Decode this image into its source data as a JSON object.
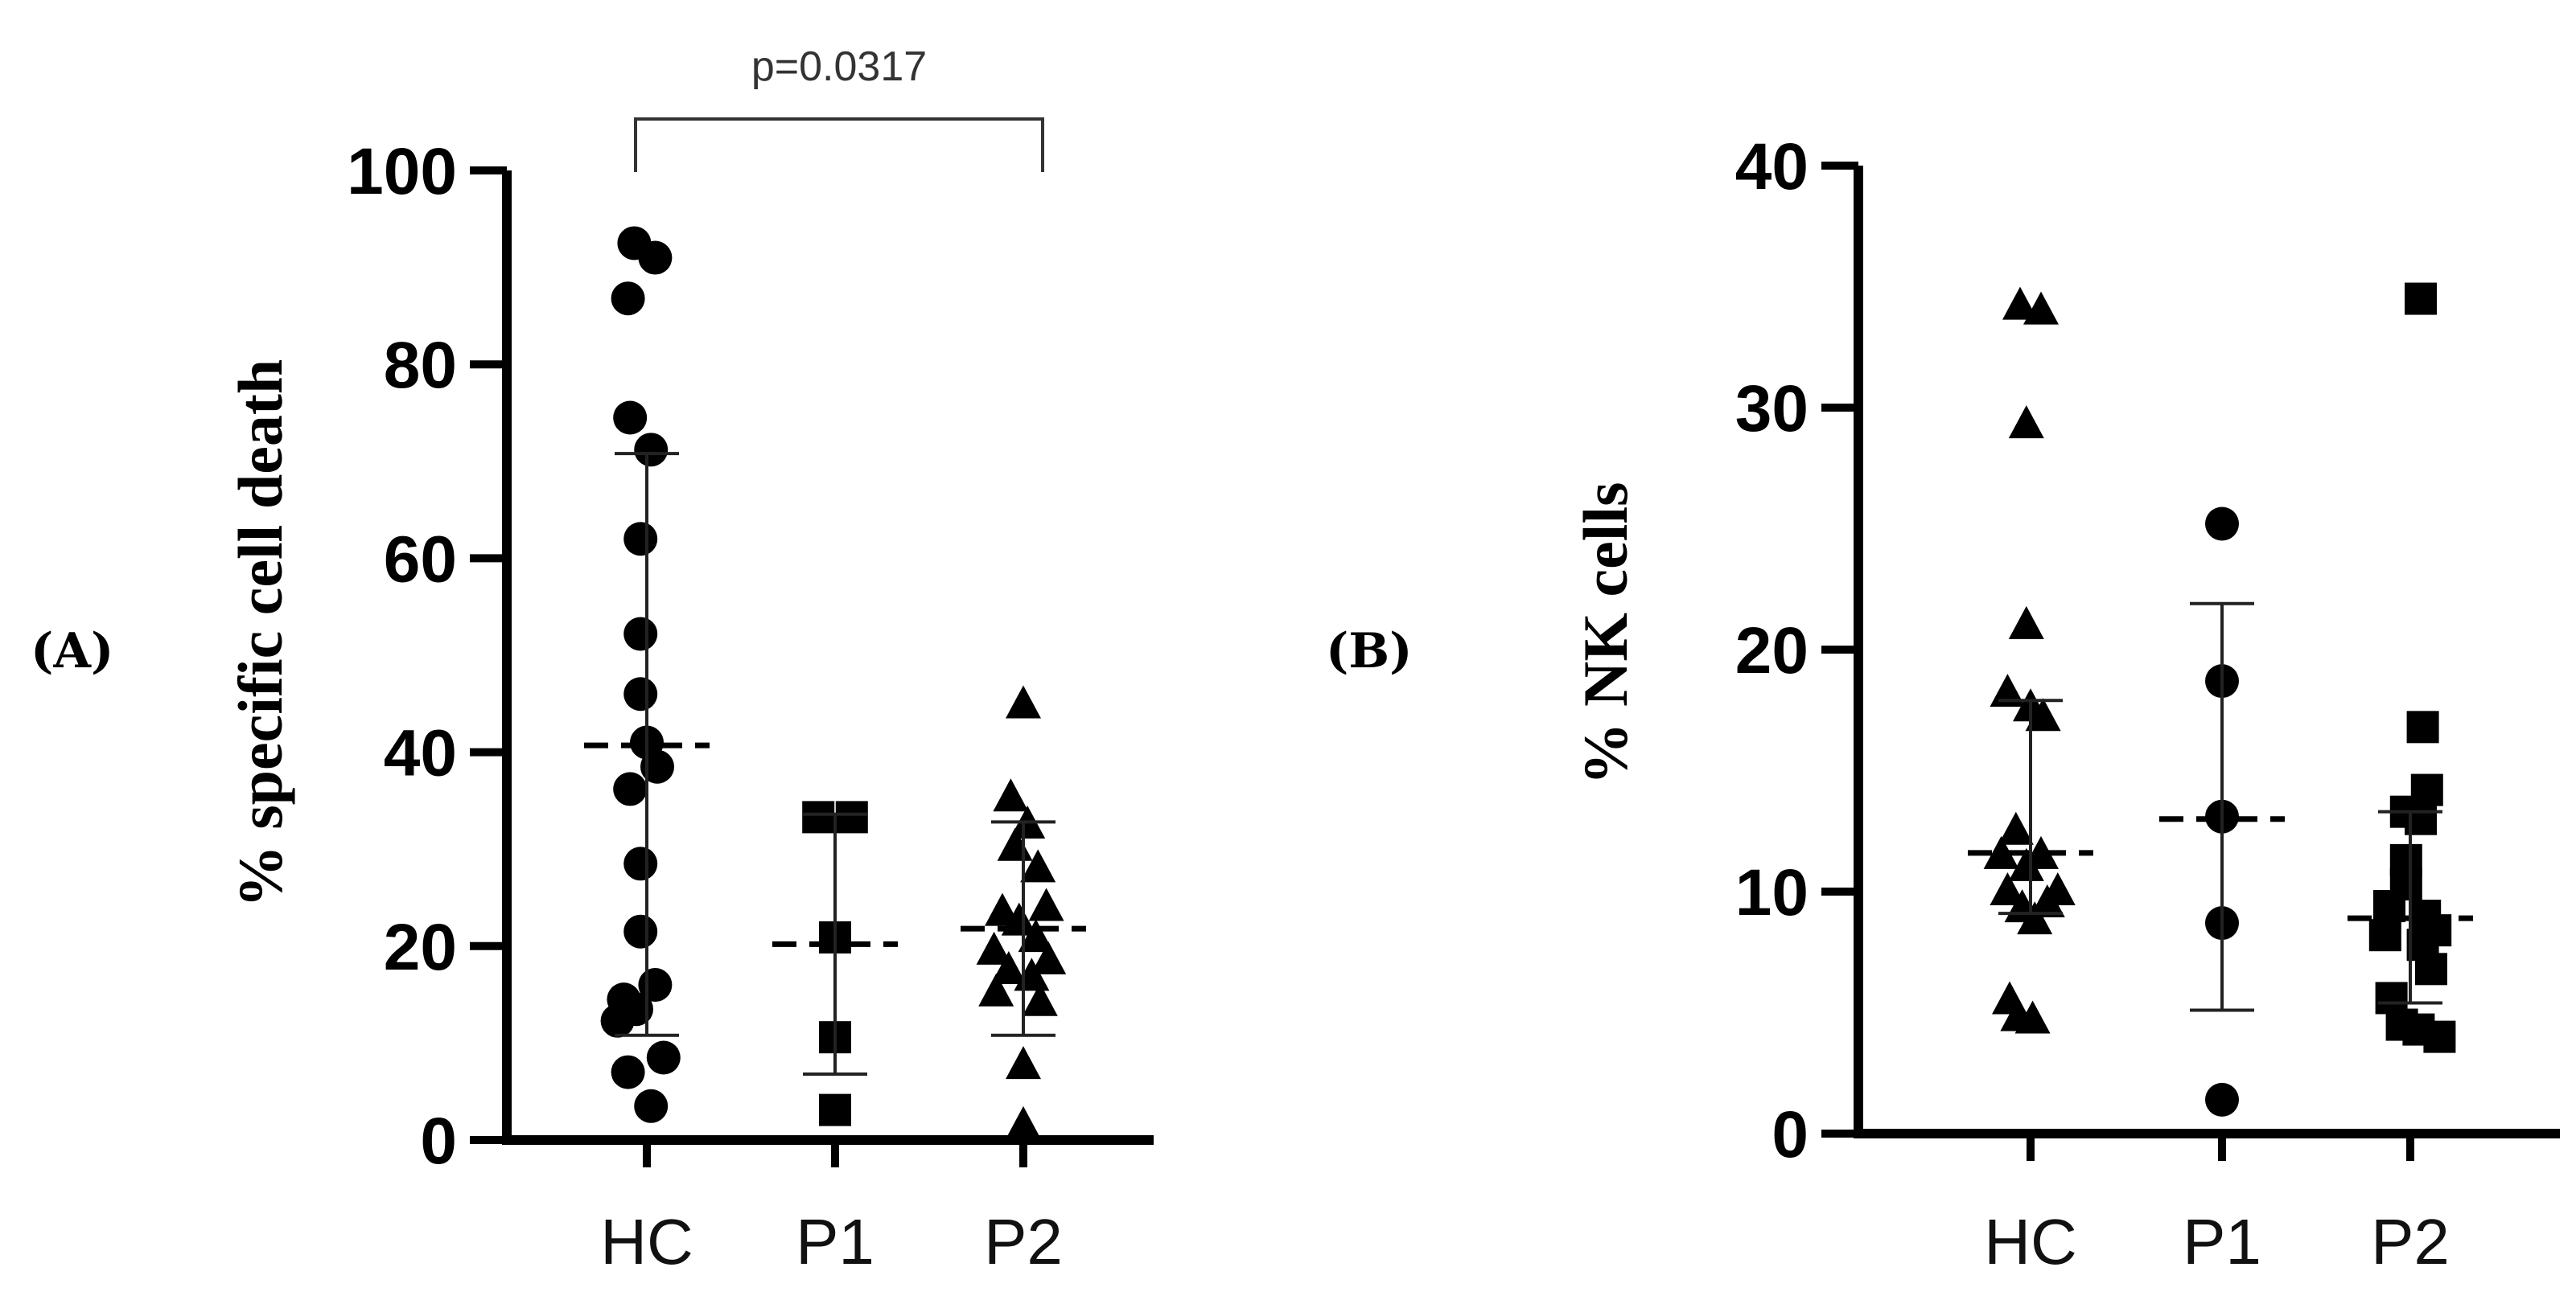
{
  "chart_data": [
    {
      "type": "scatter",
      "panel_label": "(A)",
      "title": "",
      "xlabel": "",
      "ylabel": "% specific cell death",
      "ylim": [
        0,
        100
      ],
      "yticks": [
        0,
        20,
        40,
        60,
        80,
        100
      ],
      "ytick_labels": [
        "0",
        "20",
        "40",
        "60",
        "80",
        "100"
      ],
      "grid": false,
      "categories": [
        "HC",
        "P1",
        "P2"
      ],
      "series": [
        {
          "name": "HC",
          "marker": "circle",
          "points": [
            {
              "x": -0.06,
              "y": 92.5
            },
            {
              "x": 0.04,
              "y": 91.0
            },
            {
              "x": -0.09,
              "y": 86.8
            },
            {
              "x": -0.08,
              "y": 74.5
            },
            {
              "x": 0.02,
              "y": 71.2
            },
            {
              "x": -0.03,
              "y": 62.0
            },
            {
              "x": -0.03,
              "y": 52.2
            },
            {
              "x": -0.03,
              "y": 46.0
            },
            {
              "x": 0.0,
              "y": 41.0
            },
            {
              "x": 0.05,
              "y": 38.5
            },
            {
              "x": -0.08,
              "y": 36.2
            },
            {
              "x": -0.03,
              "y": 28.5
            },
            {
              "x": -0.03,
              "y": 21.5
            },
            {
              "x": 0.04,
              "y": 16.0
            },
            {
              "x": -0.11,
              "y": 14.5
            },
            {
              "x": -0.05,
              "y": 13.5
            },
            {
              "x": -0.14,
              "y": 12.3
            },
            {
              "x": 0.08,
              "y": 8.5
            },
            {
              "x": -0.09,
              "y": 7.0
            },
            {
              "x": 0.02,
              "y": 3.5
            }
          ],
          "mean": 40.7,
          "sd_low": 10.8,
          "sd_high": 70.8
        },
        {
          "name": "P1",
          "marker": "square",
          "points": [
            {
              "x": -0.08,
              "y": 33.3
            },
            {
              "x": 0.08,
              "y": 33.3
            },
            {
              "x": 0.0,
              "y": 20.9
            },
            {
              "x": 0.0,
              "y": 10.6
            },
            {
              "x": 0.0,
              "y": 3.1
            }
          ],
          "mean": 20.2,
          "sd_low": 6.8,
          "sd_high": 33.6
        },
        {
          "name": "P2",
          "marker": "triangle",
          "points": [
            {
              "x": 0.0,
              "y": 44.9
            },
            {
              "x": -0.06,
              "y": 35.3
            },
            {
              "x": 0.02,
              "y": 32.5
            },
            {
              "x": -0.04,
              "y": 30.2
            },
            {
              "x": 0.07,
              "y": 28.0
            },
            {
              "x": 0.11,
              "y": 24.0
            },
            {
              "x": -0.1,
              "y": 23.5
            },
            {
              "x": -0.02,
              "y": 22.5
            },
            {
              "x": 0.06,
              "y": 20.8
            },
            {
              "x": -0.14,
              "y": 19.5
            },
            {
              "x": 0.12,
              "y": 18.5
            },
            {
              "x": -0.07,
              "y": 17.5
            },
            {
              "x": 0.04,
              "y": 16.8
            },
            {
              "x": -0.13,
              "y": 15.2
            },
            {
              "x": 0.08,
              "y": 14.2
            },
            {
              "x": 0.0,
              "y": 7.7
            },
            {
              "x": 0.0,
              "y": 1.5
            }
          ],
          "mean": 21.8,
          "sd_low": 10.8,
          "sd_high": 32.8
        }
      ],
      "annotations": [
        {
          "text": "p=0.0317",
          "type": "bracket",
          "from": "HC",
          "to": "P2"
        }
      ]
    },
    {
      "type": "scatter",
      "panel_label": "(B)",
      "title": "",
      "xlabel": "",
      "ylabel": "% NK cells",
      "ylim": [
        0,
        40
      ],
      "yticks": [
        0,
        10,
        20,
        30,
        40
      ],
      "ytick_labels": [
        "0",
        "10",
        "20",
        "30",
        "40"
      ],
      "grid": false,
      "categories": [
        "HC",
        "P1",
        "P2"
      ],
      "series": [
        {
          "name": "HC",
          "marker": "triangle",
          "points": [
            {
              "x": -0.05,
              "y": 34.2
            },
            {
              "x": 0.05,
              "y": 34.0
            },
            {
              "x": -0.02,
              "y": 29.3
            },
            {
              "x": -0.02,
              "y": 21.0
            },
            {
              "x": -0.11,
              "y": 18.2
            },
            {
              "x": 0.0,
              "y": 17.6
            },
            {
              "x": 0.06,
              "y": 17.2
            },
            {
              "x": -0.07,
              "y": 12.5
            },
            {
              "x": -0.14,
              "y": 11.5
            },
            {
              "x": 0.05,
              "y": 11.5
            },
            {
              "x": -0.02,
              "y": 11.0
            },
            {
              "x": 0.13,
              "y": 10.0
            },
            {
              "x": -0.11,
              "y": 10.0
            },
            {
              "x": 0.08,
              "y": 9.5
            },
            {
              "x": -0.04,
              "y": 9.3
            },
            {
              "x": 0.02,
              "y": 8.8
            },
            {
              "x": -0.1,
              "y": 5.5
            },
            {
              "x": -0.06,
              "y": 4.8
            },
            {
              "x": 0.01,
              "y": 4.7
            }
          ],
          "mean": 11.6,
          "sd_low": 9.1,
          "sd_high": 17.9
        },
        {
          "name": "P1",
          "marker": "circle",
          "points": [
            {
              "x": 0.0,
              "y": 25.2
            },
            {
              "x": 0.0,
              "y": 18.7
            },
            {
              "x": 0.0,
              "y": 13.1
            },
            {
              "x": 0.0,
              "y": 8.7
            },
            {
              "x": 0.0,
              "y": 1.4
            }
          ],
          "mean": 13.0,
          "sd_low": 5.1,
          "sd_high": 21.9
        },
        {
          "name": "P2",
          "marker": "square",
          "points": [
            {
              "x": 0.05,
              "y": 34.5
            },
            {
              "x": 0.06,
              "y": 16.8
            },
            {
              "x": 0.08,
              "y": 14.2
            },
            {
              "x": -0.02,
              "y": 13.3
            },
            {
              "x": 0.05,
              "y": 13.0
            },
            {
              "x": -0.02,
              "y": 11.3
            },
            {
              "x": -0.02,
              "y": 10.3
            },
            {
              "x": -0.1,
              "y": 9.4
            },
            {
              "x": 0.07,
              "y": 9.0
            },
            {
              "x": 0.12,
              "y": 8.4
            },
            {
              "x": -0.12,
              "y": 8.2
            },
            {
              "x": 0.06,
              "y": 7.8
            },
            {
              "x": 0.1,
              "y": 6.8
            },
            {
              "x": -0.09,
              "y": 5.6
            },
            {
              "x": -0.04,
              "y": 4.5
            },
            {
              "x": 0.04,
              "y": 4.3
            },
            {
              "x": 0.14,
              "y": 4.0
            }
          ],
          "mean": 8.9,
          "sd_low": 5.4,
          "sd_high": 13.3
        }
      ],
      "annotations": []
    }
  ]
}
